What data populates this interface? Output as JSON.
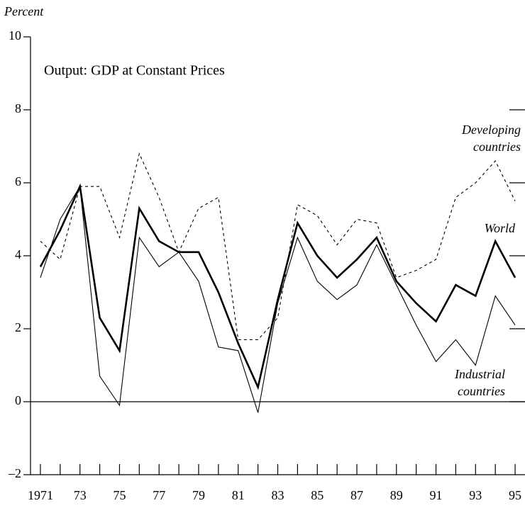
{
  "chart_data": {
    "type": "line",
    "y_label": "Percent",
    "subtitle": "Output: GDP at Constant Prices",
    "x": [
      1971,
      1972,
      1973,
      1974,
      1975,
      1976,
      1977,
      1978,
      1979,
      1980,
      1981,
      1982,
      1983,
      1984,
      1985,
      1986,
      1987,
      1988,
      1989,
      1990,
      1991,
      1992,
      1993,
      1994,
      1995
    ],
    "series": [
      {
        "name": "World",
        "color": "#000000",
        "style": "solid",
        "width": 2.6,
        "values": [
          3.7,
          4.7,
          5.9,
          2.3,
          1.4,
          5.3,
          4.4,
          4.1,
          4.1,
          3.0,
          1.6,
          0.4,
          2.8,
          4.9,
          4.0,
          3.4,
          3.9,
          4.5,
          3.3,
          2.7,
          2.2,
          3.2,
          2.9,
          4.4,
          3.4
        ]
      },
      {
        "name": "Industrial countries",
        "color": "#000000",
        "style": "solid",
        "width": 1.1,
        "values": [
          3.4,
          5.0,
          5.9,
          0.7,
          -0.1,
          4.5,
          3.7,
          4.1,
          3.3,
          1.5,
          1.4,
          -0.3,
          2.7,
          4.5,
          3.3,
          2.8,
          3.2,
          4.3,
          3.2,
          2.1,
          1.1,
          1.7,
          1.0,
          2.9,
          2.1
        ]
      },
      {
        "name": "Developing countries",
        "color": "#000000",
        "style": "dashed",
        "width": 1.1,
        "values": [
          4.4,
          3.9,
          5.9,
          5.9,
          4.5,
          6.8,
          5.6,
          4.1,
          5.3,
          5.6,
          1.7,
          1.7,
          2.3,
          5.4,
          5.1,
          4.3,
          5.0,
          4.9,
          3.4,
          3.6,
          3.9,
          5.6,
          6.0,
          6.6,
          5.5
        ]
      }
    ],
    "xlim": [
      1970.5,
      1995.5
    ],
    "xticks": [
      1971,
      {
        "value": 1973,
        "label": "73"
      },
      {
        "value": 1975,
        "label": "75"
      },
      {
        "value": 1977,
        "label": "77"
      },
      {
        "value": 1979,
        "label": "79"
      },
      {
        "value": 1981,
        "label": "81"
      },
      {
        "value": 1983,
        "label": "83"
      },
      {
        "value": 1985,
        "label": "85"
      },
      {
        "value": 1987,
        "label": "87"
      },
      {
        "value": 1989,
        "label": "89"
      },
      {
        "value": 1991,
        "label": "91"
      },
      {
        "value": 1993,
        "label": "93"
      },
      {
        "value": 1995,
        "label": "95"
      }
    ],
    "ylim": [
      -2,
      10
    ],
    "yticks": [
      {
        "value": -2,
        "label": "–2"
      },
      0,
      2,
      4,
      6,
      8,
      10
    ]
  }
}
